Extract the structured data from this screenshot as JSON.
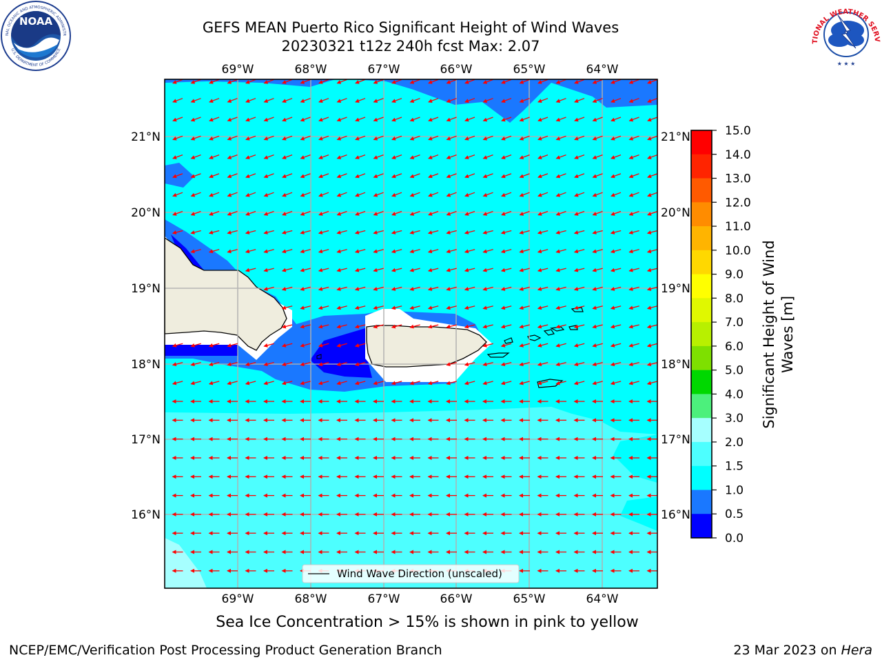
{
  "header": {
    "title_line1": "GEFS MEAN Puerto Rico Significant Height of Wind Waves",
    "title_line2": "20230321 t12z 240h fcst   Max: 2.07"
  },
  "logos": {
    "noaa_text": "NOAA",
    "noaa_ring_top": "NATIONAL OCEANIC AND ATMOSPHERIC ADMINISTRATION",
    "noaa_ring_bottom": "U.S. DEPARTMENT OF COMMERCE",
    "nws_ring": "NATIONAL WEATHER SERVICE"
  },
  "map": {
    "lon_ticks": [
      "69°W",
      "68°W",
      "67°W",
      "66°W",
      "65°W",
      "64°W"
    ],
    "lat_ticks": [
      "21°N",
      "20°N",
      "19°N",
      "18°N",
      "17°N",
      "16°N"
    ],
    "legend_label": "Wind Wave Direction (unscaled)",
    "arrow_color": "#ff0000",
    "land_color": "#efedde",
    "arrows": [
      {
        "region": "north",
        "dir_deg_from_north_toward": 250
      },
      {
        "region": "central",
        "dir_deg_from_north_toward": 255
      },
      {
        "region": "south",
        "dir_deg_from_north_toward": 270
      }
    ]
  },
  "colorbar": {
    "label_line1": "Significant Height of Wind",
    "label_line2": "Waves [m]",
    "ticks": [
      "15.0",
      "14.0",
      "13.0",
      "12.0",
      "11.0",
      "10.0",
      "9.0",
      "8.0",
      "7.0",
      "6.0",
      "5.0",
      "4.0",
      "3.0",
      "2.0",
      "1.5",
      "1.0",
      "0.5",
      "0.0"
    ],
    "colors_top_to_bottom": [
      "#ff0000",
      "#ff2400",
      "#ff5a00",
      "#ff8c00",
      "#ffb400",
      "#ffd800",
      "#ffff00",
      "#e0f800",
      "#b8f000",
      "#7ee000",
      "#00d800",
      "#4cf07c",
      "#a6ffff",
      "#4dffff",
      "#00ffff",
      "#1a78ff",
      "#0000ff"
    ]
  },
  "caption": "Sea Ice Concentration > 15% is shown in pink to yellow",
  "footer": {
    "left": "NCEP/EMC/Verification Post Processing Product Generation Branch",
    "right_prefix": "23 Mar 2023 on ",
    "right_host": "Hera"
  }
}
